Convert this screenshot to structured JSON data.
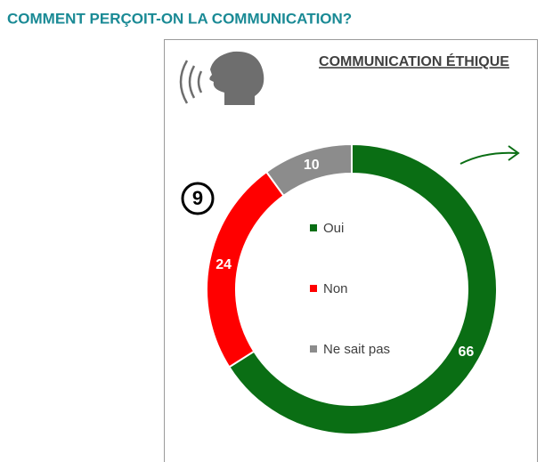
{
  "page_title": "COMMENT PERÇOIT-ON LA COMMUNICATION?",
  "badge": "9",
  "chart_data": {
    "type": "pie",
    "donut": true,
    "title": "COMMUNICATION ÉTHIQUE",
    "categories": [
      "Oui",
      "Non",
      "Ne sait pas"
    ],
    "values": [
      66,
      24,
      10
    ],
    "colors": [
      "#0a6e14",
      "#ff0000",
      "#8c8c8c"
    ]
  }
}
